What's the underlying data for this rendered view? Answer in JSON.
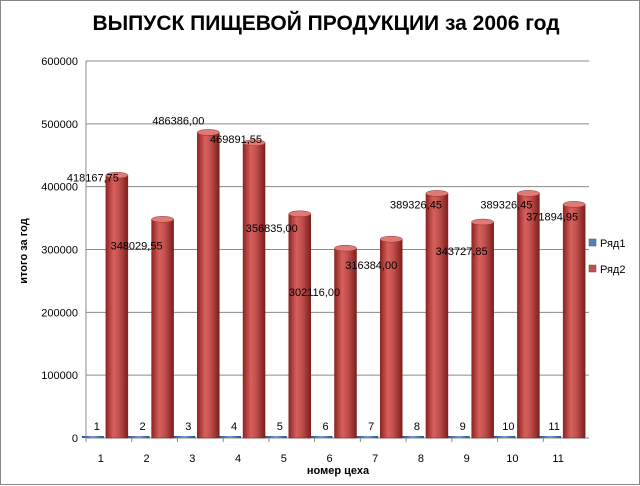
{
  "chart_data": {
    "type": "bar",
    "title": "ВЫПУСК ПИЩЕВОЙ ПРОДУКЦИИ за 2006 год",
    "xlabel": "номер цеха",
    "ylabel": "итого за год",
    "categories": [
      "1",
      "2",
      "3",
      "4",
      "5",
      "6",
      "7",
      "8",
      "9",
      "10",
      "11"
    ],
    "series": [
      {
        "name": "Ряд1",
        "color": "#4f81bd",
        "values": [
          1,
          2,
          3,
          4,
          5,
          6,
          7,
          8,
          9,
          10,
          11
        ],
        "labels": [
          "1",
          "2",
          "3",
          "4",
          "5",
          "6",
          "7",
          "8",
          "9",
          "10",
          "11"
        ]
      },
      {
        "name": "Ряд2",
        "color": "#c0504d",
        "values": [
          418167.75,
          348029.55,
          486386.0,
          469891.55,
          356835.0,
          302116.0,
          316384.0,
          389326.45,
          343727.85,
          389326.45,
          371894.95
        ],
        "labels": [
          "418167,75",
          "348029,55",
          "486386,00",
          "469891,55",
          "356835,00",
          "302116,00",
          "316384,00",
          "389326,45",
          "343727,85",
          "389326,45",
          "371894,95"
        ]
      }
    ],
    "y_ticks": [
      "0",
      "100000",
      "200000",
      "300000",
      "400000",
      "500000",
      "600000"
    ],
    "ylim": [
      0,
      600000
    ],
    "grid": true,
    "legend_position": "right"
  }
}
